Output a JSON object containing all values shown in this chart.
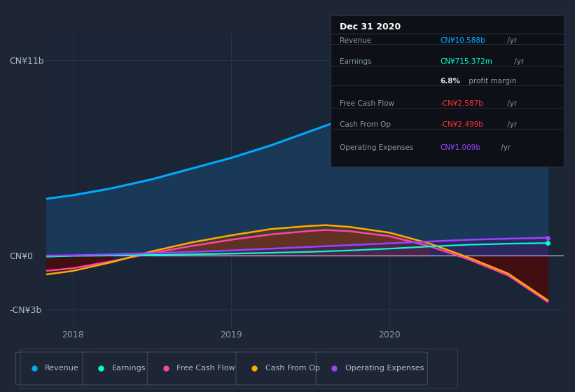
{
  "bg_color": "#1e2535",
  "plot_bg_color": "#1a2535",
  "ylim": [
    -3.8,
    12.5
  ],
  "xlim": [
    2017.83,
    2021.1
  ],
  "ytick_vals": [
    11,
    0,
    -3
  ],
  "ytick_labels": [
    "CN¥11b",
    "CN¥0",
    "-CN¥3b"
  ],
  "xtick_years": [
    2018,
    2019,
    2020
  ],
  "revenue_x": [
    2017.83,
    2018.0,
    2018.25,
    2018.5,
    2018.75,
    2019.0,
    2019.25,
    2019.5,
    2019.75,
    2020.0,
    2020.25,
    2020.5,
    2020.75,
    2021.0
  ],
  "revenue_y": [
    3.2,
    3.4,
    3.8,
    4.3,
    4.9,
    5.5,
    6.2,
    7.0,
    7.8,
    8.6,
    9.3,
    9.9,
    10.3,
    10.588
  ],
  "earnings_x": [
    2017.83,
    2018.0,
    2018.25,
    2018.5,
    2018.75,
    2019.0,
    2019.25,
    2019.5,
    2019.75,
    2020.0,
    2020.25,
    2020.5,
    2020.75,
    2021.0
  ],
  "earnings_y": [
    -0.05,
    0.0,
    0.02,
    0.05,
    0.08,
    0.12,
    0.17,
    0.22,
    0.3,
    0.4,
    0.52,
    0.62,
    0.68,
    0.715
  ],
  "fcf_x": [
    2017.83,
    2018.0,
    2018.25,
    2018.5,
    2018.75,
    2019.0,
    2019.25,
    2019.5,
    2019.6,
    2019.75,
    2020.0,
    2020.25,
    2020.5,
    2020.75,
    2021.0
  ],
  "fcf_y": [
    -0.85,
    -0.7,
    -0.3,
    0.15,
    0.55,
    0.9,
    1.2,
    1.4,
    1.45,
    1.38,
    1.1,
    0.55,
    -0.2,
    -1.1,
    -2.587
  ],
  "cfo_x": [
    2017.83,
    2018.0,
    2018.25,
    2018.5,
    2018.75,
    2019.0,
    2019.25,
    2019.5,
    2019.6,
    2019.75,
    2020.0,
    2020.25,
    2020.5,
    2020.75,
    2021.0
  ],
  "cfo_y": [
    -1.05,
    -0.85,
    -0.35,
    0.25,
    0.75,
    1.15,
    1.5,
    1.68,
    1.72,
    1.62,
    1.3,
    0.7,
    -0.1,
    -1.0,
    -2.499
  ],
  "opex_x": [
    2017.83,
    2018.0,
    2018.25,
    2018.5,
    2018.75,
    2019.0,
    2019.25,
    2019.5,
    2019.75,
    2020.0,
    2020.25,
    2020.5,
    2020.75,
    2021.0
  ],
  "opex_y": [
    0.01,
    0.03,
    0.08,
    0.15,
    0.22,
    0.3,
    0.4,
    0.5,
    0.6,
    0.7,
    0.8,
    0.9,
    0.96,
    1.009
  ],
  "revenue_color": "#00aaff",
  "earnings_color": "#00ffcc",
  "fcf_color": "#ff44aa",
  "cfo_color": "#ffaa00",
  "opex_color": "#9944ff",
  "revenue_fill": "#1a3a5c",
  "fcf_fill_pos": "#7a1540",
  "fcf_fill_neg": "#550020",
  "cfo_fill_pos": "#664400",
  "cfo_fill_neg": "#441100",
  "opex_fill": "#3d1a66",
  "grid_color": "#263545",
  "zero_line_color": "#ccddee",
  "text_color": "#aabbcc",
  "label_color": "#8899aa",
  "info_bg": "#0d1117",
  "legend_items": [
    {
      "label": "Revenue",
      "color": "#00aaff"
    },
    {
      "label": "Earnings",
      "color": "#00ffcc"
    },
    {
      "label": "Free Cash Flow",
      "color": "#ff44aa"
    },
    {
      "label": "Cash From Op",
      "color": "#ffaa00"
    },
    {
      "label": "Operating Expenses",
      "color": "#9944ff"
    }
  ]
}
